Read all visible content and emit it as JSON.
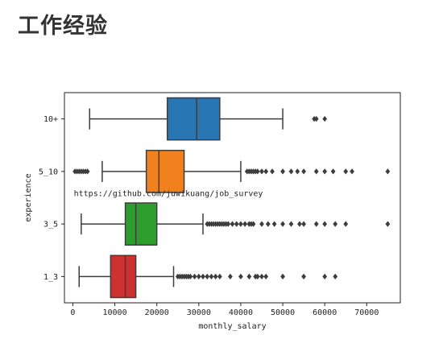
{
  "page": {
    "heading": "工作经验"
  },
  "chart_data": {
    "type": "boxplot",
    "orientation": "horizontal",
    "xlabel": "monthly_salary",
    "ylabel": "experience",
    "xlim": [
      -2000,
      78000
    ],
    "xticks": [
      0,
      10000,
      20000,
      30000,
      40000,
      50000,
      60000,
      70000
    ],
    "watermark": "https://github.com/juwikuang/job_survey",
    "watermark_x": 1000,
    "grid": false,
    "legend": "none",
    "categories": [
      {
        "name": "10+",
        "color": "#2877b4",
        "whisker_low": 4000,
        "q1": 22500,
        "median": 29500,
        "q3": 35000,
        "whisker_high": 50000,
        "outliers": [
          57500,
          58000,
          60000
        ]
      },
      {
        "name": "5_10",
        "color": "#f0811d",
        "whisker_low": 7000,
        "q1": 17500,
        "median": 20500,
        "q3": 26500,
        "whisker_high": 40000,
        "outliers": [
          500,
          1000,
          1500,
          2000,
          2500,
          3000,
          3500,
          41500,
          42000,
          42500,
          43000,
          43500,
          44000,
          45000,
          46000,
          47500,
          50000,
          52000,
          53500,
          55000,
          58000,
          60000,
          62000,
          65000,
          66500,
          75000
        ]
      },
      {
        "name": "3_5",
        "color": "#2d9e2e",
        "whisker_low": 2000,
        "q1": 12500,
        "median": 15000,
        "q3": 20000,
        "whisker_high": 31000,
        "outliers": [
          32000,
          32500,
          33000,
          33500,
          34000,
          34500,
          35000,
          35500,
          36000,
          36500,
          37000,
          38000,
          39000,
          40000,
          41000,
          42000,
          42500,
          43000,
          45000,
          46500,
          48000,
          50000,
          52000,
          54000,
          55000,
          58000,
          60000,
          62500,
          65000,
          75000
        ]
      },
      {
        "name": "1_3",
        "color": "#cd3030",
        "whisker_low": 1500,
        "q1": 9000,
        "median": 12500,
        "q3": 15000,
        "whisker_high": 24000,
        "outliers": [
          25000,
          25500,
          26000,
          26500,
          27000,
          27500,
          28000,
          29000,
          30000,
          31000,
          32000,
          33000,
          34000,
          35000,
          37500,
          40000,
          42000,
          43500,
          44000,
          45000,
          46000,
          50000,
          55000,
          60000,
          62500
        ]
      }
    ]
  }
}
